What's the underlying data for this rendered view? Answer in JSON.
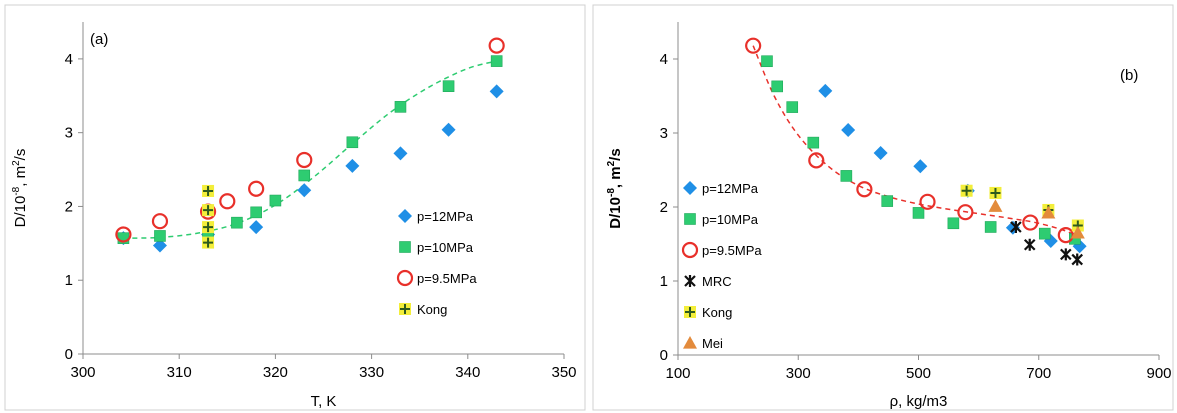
{
  "chart_data": [
    {
      "type": "scatter",
      "panel_label": "(a)",
      "xlabel": "T, K",
      "ylabel": "D/10^-8, m^2/s",
      "ylabel_parts": {
        "base": "D/10",
        "exp1": "-8",
        "mid": ", m",
        "exp2": "2",
        "tail": "/s"
      },
      "xlim": [
        300,
        350
      ],
      "ylim": [
        0,
        4.5
      ],
      "xticks": [
        300,
        310,
        320,
        330,
        340,
        350
      ],
      "yticks": [
        0,
        1,
        2,
        3,
        4
      ],
      "grid": false,
      "legend_position": "right-bottom",
      "series": [
        {
          "name": "p=12MPa",
          "marker": "diamond",
          "color": "#1f8fe6",
          "x": [
            304.2,
            308,
            313,
            318,
            323,
            328,
            333,
            338,
            343
          ],
          "y": [
            1.57,
            1.47,
            1.62,
            1.72,
            2.22,
            2.55,
            2.72,
            3.04,
            3.56
          ]
        },
        {
          "name": "p=10MPa",
          "marker": "square",
          "color": "#2ecc71",
          "x": [
            304.2,
            308,
            313,
            316,
            318,
            320,
            323,
            328,
            333,
            338,
            343
          ],
          "y": [
            1.57,
            1.6,
            1.65,
            1.78,
            1.92,
            2.08,
            2.42,
            2.87,
            3.35,
            3.63,
            3.97
          ]
        },
        {
          "name": "p=9.5MPa",
          "marker": "circle-open",
          "color": "#e8302a",
          "x": [
            304.2,
            308,
            313,
            315,
            318,
            323,
            343
          ],
          "y": [
            1.62,
            1.8,
            1.93,
            2.07,
            2.24,
            2.63,
            4.18
          ]
        },
        {
          "name": "Kong",
          "marker": "plus",
          "color": "#f3ee3a",
          "x": [
            313,
            313,
            313,
            313
          ],
          "y": [
            2.21,
            1.95,
            1.72,
            1.51
          ]
        }
      ],
      "fit": {
        "color": "#2ecc71",
        "x": [
          304.2,
          308,
          312,
          316,
          320,
          324,
          328,
          332,
          336,
          340,
          343
        ],
        "y": [
          1.57,
          1.58,
          1.64,
          1.77,
          2.02,
          2.4,
          2.85,
          3.28,
          3.62,
          3.87,
          3.97
        ]
      }
    },
    {
      "type": "scatter",
      "panel_label": "(b)",
      "xlabel": "ρ, kg/m3",
      "ylabel": "D/10^-8, m^2/s",
      "ylabel_parts": {
        "base": "D/10",
        "exp1": "-8",
        "mid": ", m",
        "exp2": "2",
        "tail": "/s"
      },
      "xlim": [
        100,
        900
      ],
      "ylim": [
        0,
        4.5
      ],
      "xticks": [
        100,
        300,
        500,
        700,
        900
      ],
      "yticks": [
        0,
        1,
        2,
        3,
        4
      ],
      "grid": false,
      "legend_position": "left-bottom",
      "series": [
        {
          "name": "p=12MPa",
          "marker": "diamond",
          "color": "#1f8fe6",
          "x": [
            345,
            383,
            437,
            503,
            582,
            657,
            720,
            768
          ],
          "y": [
            3.57,
            3.04,
            2.73,
            2.55,
            2.22,
            1.72,
            1.54,
            1.47
          ]
        },
        {
          "name": "p=10MPa",
          "marker": "square",
          "color": "#2ecc71",
          "x": [
            248,
            265,
            290,
            325,
            380,
            448,
            500,
            558,
            620,
            710,
            760
          ],
          "y": [
            3.97,
            3.63,
            3.35,
            2.87,
            2.42,
            2.08,
            1.92,
            1.78,
            1.73,
            1.64,
            1.57
          ]
        },
        {
          "name": "p=9.5MPa",
          "marker": "circle-open",
          "color": "#e8302a",
          "x": [
            225,
            330,
            410,
            515,
            578,
            686,
            745
          ],
          "y": [
            4.18,
            2.63,
            2.24,
            2.07,
            1.93,
            1.79,
            1.62
          ]
        },
        {
          "name": "MRC",
          "marker": "asterisk",
          "color": "#111111",
          "x": [
            662,
            685,
            745,
            764
          ],
          "y": [
            1.73,
            1.49,
            1.36,
            1.29
          ]
        },
        {
          "name": "Kong",
          "marker": "plus",
          "color": "#f3ee3a",
          "x": [
            580,
            628,
            716,
            765
          ],
          "y": [
            2.22,
            2.19,
            1.96,
            1.75
          ]
        },
        {
          "name": "Mei",
          "marker": "triangle",
          "color": "#e38b3c",
          "x": [
            628,
            716,
            765
          ],
          "y": [
            2.01,
            1.92,
            1.65
          ]
        }
      ],
      "fit": {
        "color": "#e8302a",
        "x": [
          225,
          260,
          300,
          350,
          400,
          450,
          500,
          550,
          600,
          650,
          700,
          750,
          770
        ],
        "y": [
          4.18,
          3.5,
          2.97,
          2.55,
          2.29,
          2.14,
          2.04,
          1.97,
          1.91,
          1.85,
          1.78,
          1.66,
          1.55
        ]
      }
    }
  ]
}
